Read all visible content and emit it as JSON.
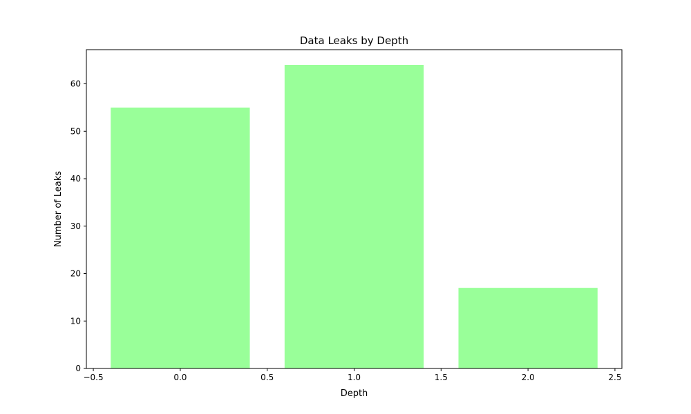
{
  "chart_data": {
    "type": "bar",
    "title": "Data Leaks by Depth",
    "xlabel": "Depth",
    "ylabel": "Number of Leaks",
    "x": [
      0,
      1,
      2
    ],
    "values": [
      55,
      64,
      17
    ],
    "bar_width": 0.8,
    "bar_color": "#99ff99",
    "xlim": [
      -0.54,
      2.54
    ],
    "ylim": [
      0,
      67.2
    ],
    "xticks": [
      -0.5,
      0.0,
      0.5,
      1.0,
      1.5,
      2.0,
      2.5
    ],
    "xtick_labels": [
      "−0.5",
      "0.0",
      "0.5",
      "1.0",
      "1.5",
      "2.0",
      "2.5"
    ],
    "yticks": [
      0,
      10,
      20,
      30,
      40,
      50,
      60
    ],
    "ytick_labels": [
      "0",
      "10",
      "20",
      "30",
      "40",
      "50",
      "60"
    ],
    "grid": false,
    "legend": "none"
  }
}
